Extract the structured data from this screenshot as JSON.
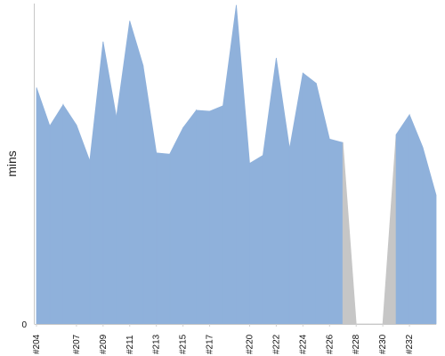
{
  "chart_data": {
    "type": "area",
    "title": "",
    "xlabel": "",
    "ylabel": "mins",
    "ylim": [
      0,
      100
    ],
    "y_ticks": [
      "0"
    ],
    "grid": false,
    "x": [
      "#204",
      "#205",
      "#206",
      "#207",
      "#208",
      "#209",
      "#210",
      "#211",
      "#212",
      "#213",
      "#214",
      "#215",
      "#216",
      "#217",
      "#218",
      "#219",
      "#220",
      "#221",
      "#222",
      "#223",
      "#224",
      "#225",
      "#226",
      "#227",
      "#228",
      "#229",
      "#230",
      "#231",
      "#232",
      "#233",
      "#234"
    ],
    "x_tick_labels": [
      "#204",
      "#207",
      "#209",
      "#211",
      "#213",
      "#215",
      "#217",
      "#220",
      "#222",
      "#224",
      "#226",
      "#228",
      "#230",
      "#232"
    ],
    "values": [
      73.8,
      61.8,
      68.4,
      62.1,
      50.9,
      88.1,
      64.5,
      94.6,
      80.7,
      53.4,
      53.0,
      61.2,
      66.7,
      66.4,
      68.1,
      99.5,
      50.1,
      52.6,
      83.0,
      54.7,
      78.3,
      75.1,
      57.7,
      56.6,
      0,
      0,
      0,
      59.1,
      65.3,
      55.1,
      40.2
    ],
    "point_status": [
      "ok",
      "ok",
      "ok",
      "ok",
      "ok",
      "ok",
      "ok",
      "ok",
      "ok",
      "ok",
      "ok",
      "ok",
      "ok",
      "ok",
      "ok",
      "ok",
      "ok",
      "ok",
      "ok",
      "ok",
      "ok",
      "ok",
      "ok",
      "ok",
      "gap",
      "gap",
      "gap",
      "ok",
      "ok",
      "ok",
      "ok"
    ],
    "colors": {
      "fill": "#8fb1db",
      "gap": "#c6c6c6",
      "axis": "#c7c7c7",
      "text": "#111111"
    }
  }
}
